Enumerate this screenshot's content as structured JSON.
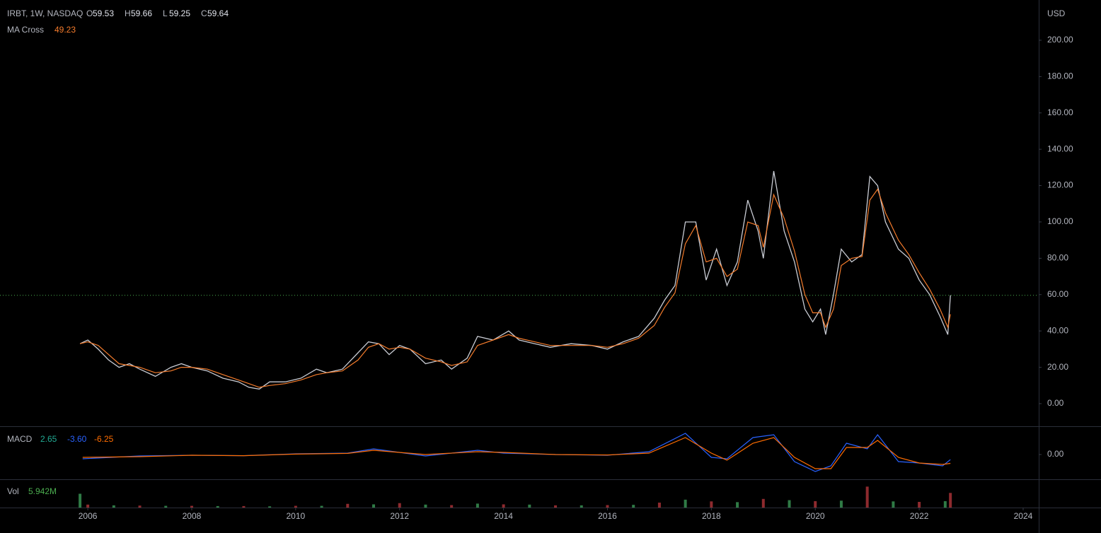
{
  "chart_data": [
    {
      "type": "line",
      "title": "IRBT, 1W, NASDAQ",
      "currency": "USD",
      "ohlc": [
        {
          "label": "O",
          "value": 59.53
        },
        {
          "label": "H",
          "value": 59.66
        },
        {
          "label": "L",
          "value": 59.25
        },
        {
          "label": "C",
          "value": 59.64
        }
      ],
      "x": [
        2005.85,
        2006.0,
        2006.2,
        2006.4,
        2006.6,
        2006.8,
        2007.0,
        2007.3,
        2007.6,
        2007.8,
        2008.0,
        2008.3,
        2008.6,
        2008.9,
        2009.1,
        2009.3,
        2009.5,
        2009.8,
        2010.1,
        2010.4,
        2010.6,
        2010.9,
        2011.2,
        2011.4,
        2011.6,
        2011.8,
        2012.0,
        2012.2,
        2012.5,
        2012.8,
        2013.0,
        2013.3,
        2013.5,
        2013.8,
        2014.1,
        2014.3,
        2014.6,
        2014.9,
        2015.3,
        2015.7,
        2016.0,
        2016.3,
        2016.6,
        2016.9,
        2017.1,
        2017.3,
        2017.5,
        2017.7,
        2017.9,
        2018.1,
        2018.3,
        2018.5,
        2018.7,
        2018.9,
        2019.0,
        2019.2,
        2019.4,
        2019.6,
        2019.8,
        2019.95,
        2020.1,
        2020.2,
        2020.35,
        2020.5,
        2020.7,
        2020.9,
        2021.05,
        2021.2,
        2021.35,
        2021.6,
        2021.8,
        2022.0,
        2022.2,
        2022.4,
        2022.55,
        2022.6
      ],
      "series": [
        {
          "color": "#c9ccd4",
          "values": [
            33,
            35,
            30,
            24,
            20,
            22,
            19,
            15,
            20,
            22,
            20,
            18,
            14,
            12,
            9,
            8,
            12,
            12,
            14,
            19,
            17,
            19,
            28,
            34,
            33,
            27,
            32,
            30,
            22,
            24,
            19,
            25,
            37,
            35,
            40,
            35,
            33,
            31,
            33,
            32,
            30,
            34,
            37,
            47,
            57,
            65,
            100,
            100,
            68,
            85,
            65,
            78,
            112,
            95,
            80,
            128,
            95,
            78,
            52,
            45,
            52,
            38,
            60,
            85,
            78,
            82,
            125,
            120,
            100,
            85,
            80,
            68,
            60,
            48,
            38,
            59.64
          ]
        },
        {
          "name": "MA Cross",
          "color": "#f57c2c",
          "values": [
            33,
            34,
            32,
            27,
            22,
            21,
            20,
            17,
            18,
            20,
            20,
            19,
            16,
            13,
            11,
            9,
            10,
            11,
            13,
            16,
            17,
            18,
            24,
            31,
            33,
            30,
            31,
            30,
            25,
            23,
            21,
            23,
            32,
            35,
            38,
            36,
            34,
            32,
            32,
            32,
            31,
            33,
            36,
            43,
            53,
            61,
            88,
            98,
            78,
            80,
            70,
            74,
            100,
            98,
            86,
            115,
            102,
            84,
            60,
            50,
            50,
            42,
            52,
            76,
            80,
            81,
            112,
            118,
            105,
            90,
            82,
            72,
            63,
            52,
            42,
            49.23
          ]
        }
      ],
      "xlim": [
        2004.31,
        2024.3
      ],
      "xticks": [
        2006,
        2008,
        2010,
        2012,
        2014,
        2016,
        2018,
        2020,
        2022,
        2024
      ],
      "ylim": [
        -12.45,
        220.2
      ],
      "yticks": [
        {
          "value": 0,
          "label": "0.00"
        },
        {
          "value": 20,
          "label": "20.00"
        },
        {
          "value": 40,
          "label": "40.00"
        },
        {
          "value": 60,
          "label": "60.00"
        },
        {
          "value": 80,
          "label": "80.00"
        },
        {
          "value": 100,
          "label": "100.00"
        },
        {
          "value": 120,
          "label": "120.00"
        },
        {
          "value": 140,
          "label": "140.00"
        },
        {
          "value": 160,
          "label": "160.00"
        },
        {
          "value": 180,
          "label": "180.00"
        },
        {
          "value": 200,
          "label": "200.00"
        }
      ]
    },
    {
      "type": "line",
      "title": "MACD",
      "readouts": [
        {
          "value": 2.65,
          "color": "#22ab94"
        },
        {
          "value": -3.6,
          "label": "-3.60",
          "color": "#2962ff"
        },
        {
          "value": -6.25,
          "color": "#ff6d00"
        }
      ],
      "x": [
        2005.9,
        2007,
        2008,
        2009,
        2010,
        2011,
        2011.5,
        2012.5,
        2013.5,
        2014,
        2015,
        2016,
        2016.8,
        2017.5,
        2018.0,
        2018.3,
        2018.8,
        2019.2,
        2019.6,
        2020.0,
        2020.3,
        2020.6,
        2021.0,
        2021.2,
        2021.6,
        2022.0,
        2022.45,
        2022.6
      ],
      "series": [
        {
          "color": "#2962ff",
          "values": [
            -3,
            -1,
            -0.5,
            -0.8,
            0.5,
            1,
            4,
            -1,
            3,
            1,
            0,
            -0.5,
            2,
            15,
            -2,
            -3,
            12,
            14,
            -5,
            -12,
            -8,
            8,
            4,
            14,
            -5,
            -6,
            -8,
            -3.6
          ]
        },
        {
          "color": "#ff6d00",
          "values": [
            -2,
            -1.5,
            -0.5,
            -0.8,
            0.3,
            0.8,
            3,
            0,
            2,
            1.5,
            0,
            -0.3,
            1,
            12,
            1,
            -4,
            8,
            12,
            -2,
            -10,
            -10,
            5,
            5,
            10,
            -2,
            -6,
            -7,
            -6.25
          ]
        }
      ],
      "ylim": [
        -17.5,
        19.5
      ],
      "yticks": [
        {
          "value": 0,
          "label": "0.00"
        }
      ]
    },
    {
      "type": "bar",
      "title": "Vol",
      "last": {
        "value": 5942000,
        "label": "5.942M"
      },
      "x": [
        2005.85,
        2006,
        2006.5,
        2007,
        2007.5,
        2008,
        2008.5,
        2009,
        2009.5,
        2010,
        2010.5,
        2011,
        2011.5,
        2012,
        2012.5,
        2013,
        2013.5,
        2014,
        2014.5,
        2015,
        2015.5,
        2016,
        2016.5,
        2017,
        2017.5,
        2018,
        2018.5,
        2019,
        2019.5,
        2020,
        2020.5,
        2021,
        2021.5,
        2022,
        2022.5,
        2022.6
      ],
      "values": [
        5600000,
        1200000,
        900000,
        800000,
        700000,
        700000,
        600000,
        600000,
        500000,
        700000,
        700000,
        1500000,
        1300000,
        1800000,
        1200000,
        1000000,
        1600000,
        1300000,
        1200000,
        900000,
        900000,
        1000000,
        1100000,
        2000000,
        3200000,
        2500000,
        2200000,
        3500000,
        3000000,
        2600000,
        2800000,
        8500000,
        2500000,
        2300000,
        2600000,
        5942000
      ],
      "colors": [
        "#2f7a45",
        "#8e2a2e"
      ],
      "ylim": [
        0,
        10900000
      ]
    }
  ]
}
